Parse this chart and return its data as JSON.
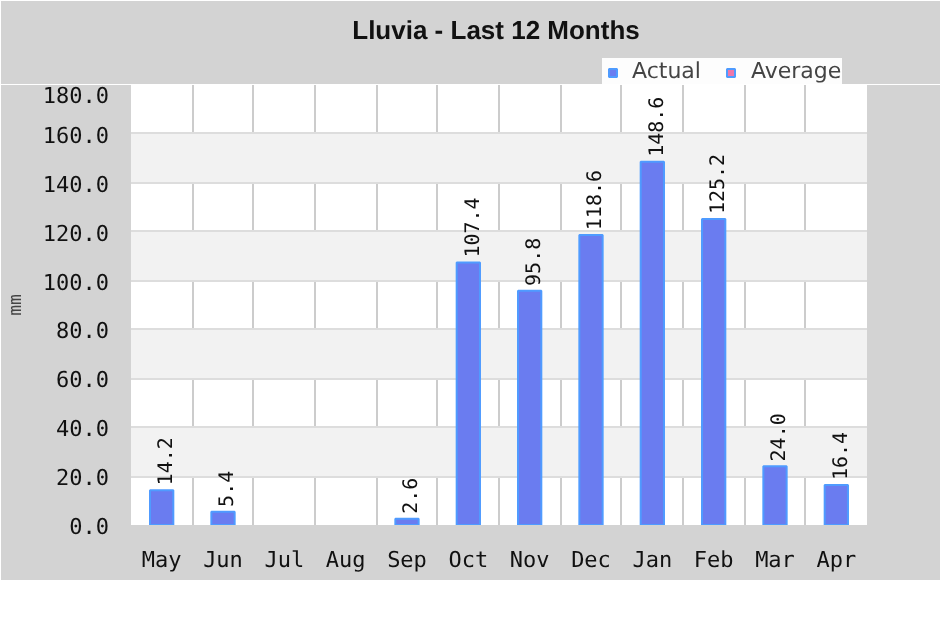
{
  "chart_data": {
    "type": "bar",
    "title": "Lluvia - Last 12 Months",
    "ylabel": "mm",
    "categories": [
      "May",
      "Jun",
      "Jul",
      "Aug",
      "Sep",
      "Oct",
      "Nov",
      "Dec",
      "Jan",
      "Feb",
      "Mar",
      "Apr"
    ],
    "series": [
      {
        "name": "Actual",
        "color": "#6a7cf0",
        "values": [
          14.2,
          5.4,
          null,
          null,
          2.6,
          107.4,
          95.8,
          118.6,
          148.6,
          125.2,
          24.0,
          16.4
        ],
        "value_labels": [
          "14.2",
          "5.4",
          null,
          null,
          "2.6",
          "107.4",
          "95.8",
          "118.6",
          "148.6",
          "125.2",
          "24.0",
          "16.4"
        ]
      },
      {
        "name": "Average",
        "color": "#ee77aa",
        "values": [
          null,
          null,
          null,
          null,
          null,
          null,
          null,
          null,
          null,
          null,
          null,
          null
        ]
      }
    ],
    "ylim": [
      0,
      180
    ],
    "yticks": [
      {
        "value": 0,
        "label": "0.0"
      },
      {
        "value": 20,
        "label": "20.0"
      },
      {
        "value": 40,
        "label": "40.0"
      },
      {
        "value": 60,
        "label": "60.0"
      },
      {
        "value": 80,
        "label": "80.0"
      },
      {
        "value": 100,
        "label": "100.0"
      },
      {
        "value": 120,
        "label": "120.0"
      },
      {
        "value": 140,
        "label": "140.0"
      },
      {
        "value": 160,
        "label": "160.0"
      },
      {
        "value": 180,
        "label": "180.0"
      }
    ],
    "grid": true,
    "legend": "top right",
    "data_labels": true
  }
}
